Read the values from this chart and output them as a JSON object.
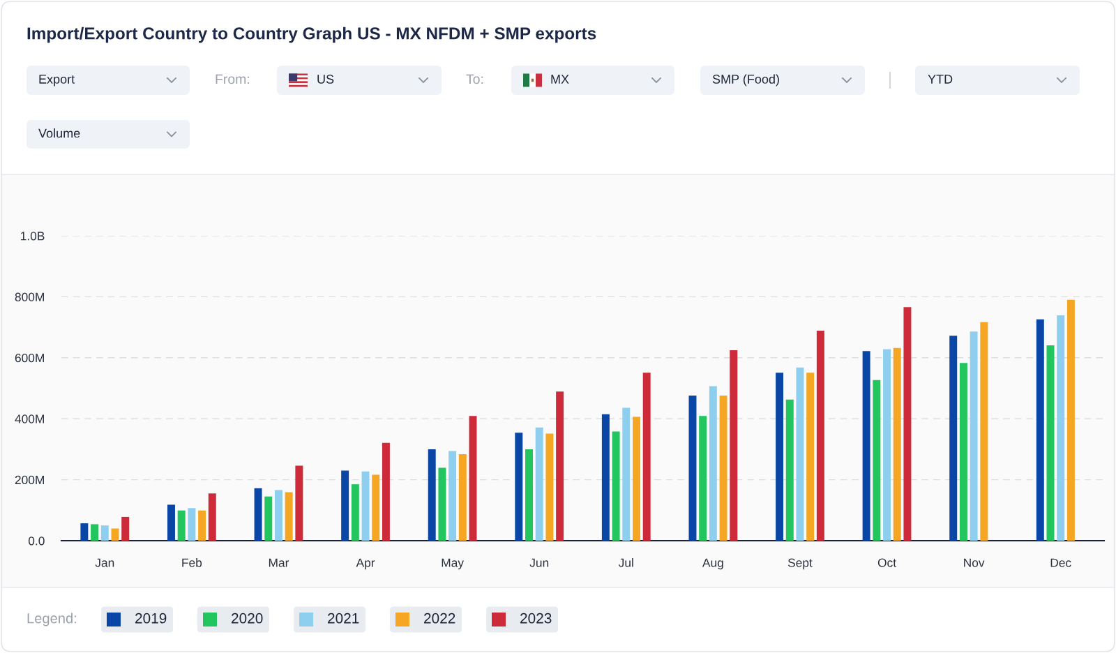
{
  "chart_data": {
    "type": "bar",
    "title": "Import/Export Country to Country Graph US - MX NFDM + SMP exports",
    "annotations": [
      "Export",
      "From:",
      "US",
      "To:",
      "MX",
      "SMP (Food)",
      "YTD",
      "Volume"
    ],
    "categories": [
      "Jan",
      "Feb",
      "Mar",
      "Apr",
      "May",
      "Jun",
      "Jul",
      "Aug",
      "Sept",
      "Oct",
      "Nov",
      "Dec"
    ],
    "series": [
      {
        "name": "2019",
        "color": "#0a46a5",
        "values": [
          57000000,
          118000000,
          172000000,
          230000000,
          300000000,
          354000000,
          415000000,
          476000000,
          551000000,
          622000000,
          672000000,
          726000000
        ]
      },
      {
        "name": "2020",
        "color": "#22c55e",
        "values": [
          54000000,
          99000000,
          145000000,
          185000000,
          239000000,
          300000000,
          358000000,
          409000000,
          463000000,
          527000000,
          583000000,
          641000000
        ]
      },
      {
        "name": "2021",
        "color": "#8ecfef",
        "values": [
          50000000,
          107000000,
          166000000,
          227000000,
          294000000,
          371000000,
          436000000,
          507000000,
          568000000,
          628000000,
          686000000,
          739000000
        ]
      },
      {
        "name": "2022",
        "color": "#f5a623",
        "values": [
          40000000,
          99000000,
          159000000,
          216000000,
          284000000,
          351000000,
          406000000,
          476000000,
          551000000,
          632000000,
          717000000,
          790000000
        ]
      },
      {
        "name": "2023",
        "color": "#cd2a3a",
        "values": [
          78000000,
          155000000,
          246000000,
          321000000,
          409000000,
          489000000,
          551000000,
          625000000,
          689000000,
          766000000,
          null,
          null
        ]
      }
    ],
    "ylim": [
      0,
      1000000000
    ],
    "yticks": [
      {
        "value": 0,
        "label": "0.0"
      },
      {
        "value": 200000000,
        "label": "200M"
      },
      {
        "value": 400000000,
        "label": "400M"
      },
      {
        "value": 600000000,
        "label": "600M"
      },
      {
        "value": 800000000,
        "label": "800M"
      },
      {
        "value": 1000000000,
        "label": "1.0B"
      }
    ],
    "grid": "y",
    "legend": "bottom",
    "legend_title": "Legend:"
  }
}
